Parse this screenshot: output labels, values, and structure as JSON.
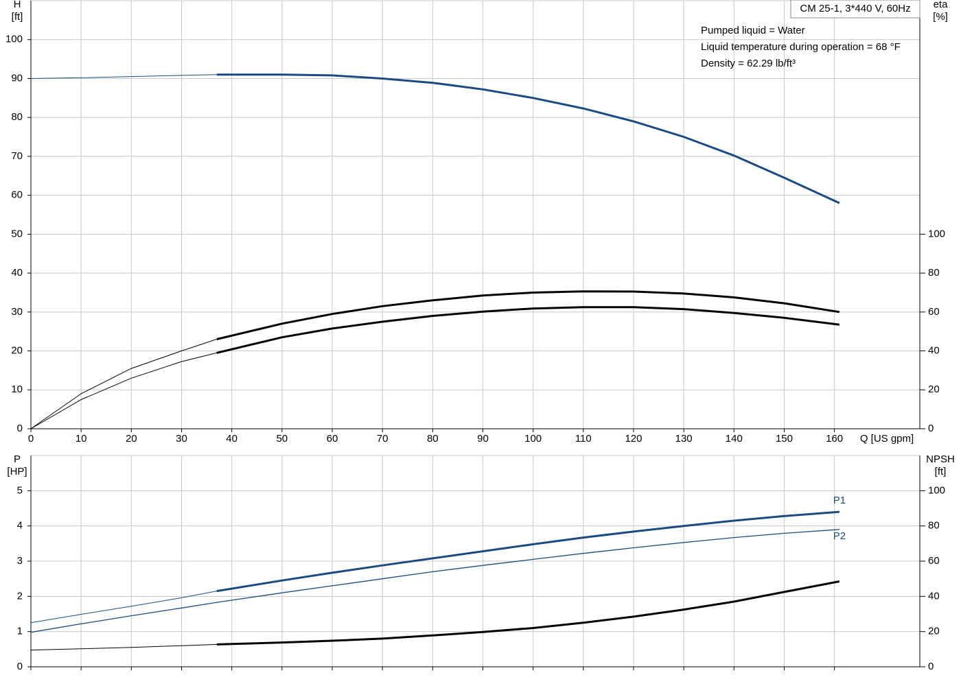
{
  "chart_data": [
    {
      "type": "line",
      "title": "CM 25-1, 3*440 V, 60Hz",
      "annotations": [
        "Pumped liquid = Water",
        "Liquid temperature during operation = 68 °F",
        "Density = 62.29 lb/ft³"
      ],
      "ylabel": [
        "H",
        "[ft]"
      ],
      "y2label": [
        "eta",
        "[%]"
      ],
      "xlabel": "Q [US gpm]",
      "xlim": [
        0,
        177
      ],
      "xticks": [
        0,
        10,
        20,
        30,
        40,
        50,
        60,
        70,
        80,
        90,
        100,
        110,
        120,
        130,
        140,
        150,
        160
      ],
      "ylim": [
        0,
        110
      ],
      "yticks": [
        0,
        10,
        20,
        30,
        40,
        50,
        60,
        70,
        80,
        90,
        100
      ],
      "y2lim": [
        0,
        220
      ],
      "y2ticks": [
        0,
        20,
        40,
        60,
        80,
        100
      ],
      "grid": true,
      "xtick_labels": true,
      "series": [
        {
          "color": "#1a4a80",
          "thick_from": 37,
          "x": [
            0,
            10,
            20,
            30,
            37,
            50,
            60,
            70,
            80,
            90,
            100,
            110,
            120,
            130,
            140,
            150,
            161
          ],
          "values": [
            90,
            90.2,
            90.5,
            90.8,
            91,
            91,
            90.8,
            90,
            88.9,
            87.2,
            85,
            82.3,
            79,
            75,
            70.2,
            64.5,
            58
          ]
        },
        {
          "color": "#000000",
          "axis": "y2",
          "thick_from": 37,
          "x": [
            0,
            10,
            20,
            30,
            37,
            50,
            60,
            70,
            80,
            90,
            100,
            110,
            120,
            130,
            140,
            150,
            161
          ],
          "values": [
            0,
            18,
            31,
            40,
            46,
            54,
            59,
            63,
            66,
            68.5,
            70,
            70.6,
            70.5,
            69.5,
            67.5,
            64.5,
            60
          ]
        },
        {
          "color": "#000000",
          "axis": "y2",
          "thick_from": 37,
          "x": [
            0,
            10,
            20,
            30,
            37,
            50,
            60,
            70,
            80,
            90,
            100,
            110,
            120,
            130,
            140,
            150,
            161
          ],
          "values": [
            0,
            15,
            26,
            34.5,
            39,
            47,
            51.5,
            55,
            58,
            60.2,
            61.8,
            62.5,
            62.5,
            61.5,
            59.5,
            57,
            53.5
          ]
        }
      ]
    },
    {
      "type": "line",
      "ylabel": [
        "P",
        "[HP]"
      ],
      "y2label": [
        "NPSH",
        "[ft]"
      ],
      "xlim": [
        0,
        177
      ],
      "xticks": [
        0,
        10,
        20,
        30,
        40,
        50,
        60,
        70,
        80,
        90,
        100,
        110,
        120,
        130,
        140,
        150,
        160
      ],
      "ylim": [
        0,
        6
      ],
      "yticks": [
        0,
        1,
        2,
        3,
        4,
        5
      ],
      "y2lim": [
        0,
        120
      ],
      "y2ticks": [
        0,
        20,
        40,
        60,
        80,
        100
      ],
      "grid": true,
      "xtick_labels": false,
      "series": [
        {
          "name": "P1",
          "color": "#1a4a80",
          "thick_from": 37,
          "x": [
            0,
            10,
            20,
            30,
            37,
            50,
            60,
            70,
            80,
            90,
            100,
            110,
            120,
            130,
            140,
            150,
            161
          ],
          "values": [
            1.25,
            1.49,
            1.72,
            1.96,
            2.15,
            2.45,
            2.67,
            2.88,
            3.08,
            3.28,
            3.48,
            3.67,
            3.84,
            4.0,
            4.15,
            4.28,
            4.4
          ]
        },
        {
          "name": "P2",
          "color": "#1a4a80",
          "x": [
            0,
            10,
            20,
            30,
            37,
            50,
            60,
            70,
            80,
            90,
            100,
            110,
            120,
            130,
            140,
            150,
            161
          ],
          "values": [
            0.98,
            1.22,
            1.45,
            1.67,
            1.83,
            2.1,
            2.3,
            2.5,
            2.7,
            2.88,
            3.05,
            3.22,
            3.38,
            3.53,
            3.67,
            3.79,
            3.9
          ]
        },
        {
          "color": "#000000",
          "axis": "y2",
          "thick_from": 37,
          "x": [
            0,
            10,
            20,
            30,
            37,
            50,
            60,
            70,
            80,
            90,
            100,
            110,
            120,
            130,
            140,
            150,
            161
          ],
          "values": [
            9.5,
            10.2,
            11,
            12,
            12.7,
            13.8,
            14.8,
            16,
            17.8,
            19.8,
            22,
            25,
            28.5,
            32.5,
            37,
            42.5,
            48.5
          ]
        }
      ]
    }
  ]
}
